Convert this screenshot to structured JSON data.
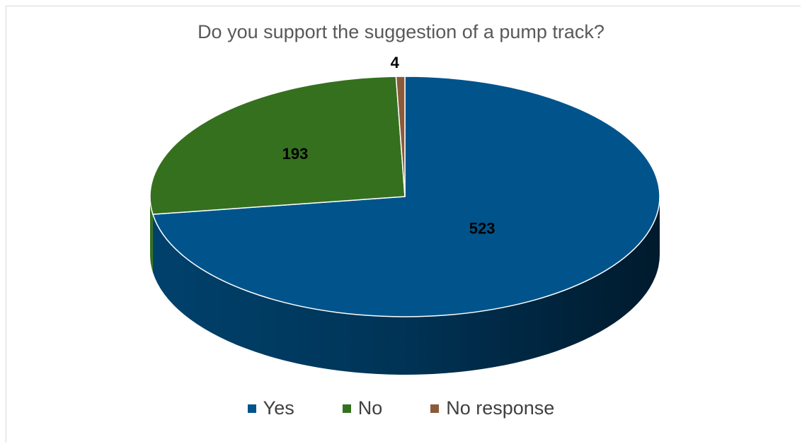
{
  "chart_data": {
    "type": "pie",
    "title": "Do you support the suggestion of a pump track?",
    "categories": [
      "Yes",
      "No",
      "No response"
    ],
    "values": [
      523,
      193,
      4
    ],
    "colors": [
      "#00548b",
      "#35701f",
      "#8b5a3a"
    ],
    "data_labels": [
      "523",
      "193",
      "4"
    ],
    "legend_position": "bottom",
    "style": "3d"
  },
  "legend": {
    "items": [
      {
        "label": "Yes",
        "color": "#00548b"
      },
      {
        "label": "No",
        "color": "#35701f"
      },
      {
        "label": "No response",
        "color": "#8b5a3a"
      }
    ]
  }
}
